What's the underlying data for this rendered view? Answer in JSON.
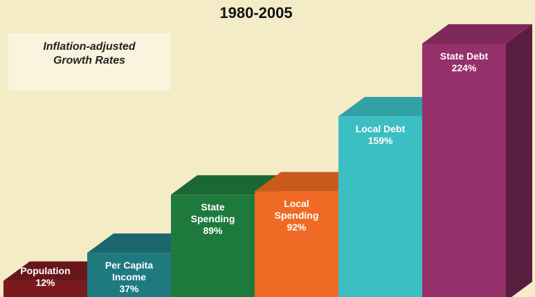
{
  "chart_data": {
    "type": "bar",
    "title": "1980-2005",
    "subtitle": "Inflation-adjusted Growth Rates",
    "categories": [
      "Population",
      "Per Capita Income",
      "State Spending",
      "Local Spending",
      "Local Debt",
      "State Debt"
    ],
    "values": [
      12,
      37,
      89,
      92,
      159,
      224
    ],
    "value_labels": [
      "12%",
      "37%",
      "89%",
      "92%",
      "159%",
      "224%"
    ],
    "colors": [
      "#7a1a1e",
      "#1f7a80",
      "#1e7a3c",
      "#ef6a24",
      "#3cbfc3",
      "#94306a"
    ]
  }
}
